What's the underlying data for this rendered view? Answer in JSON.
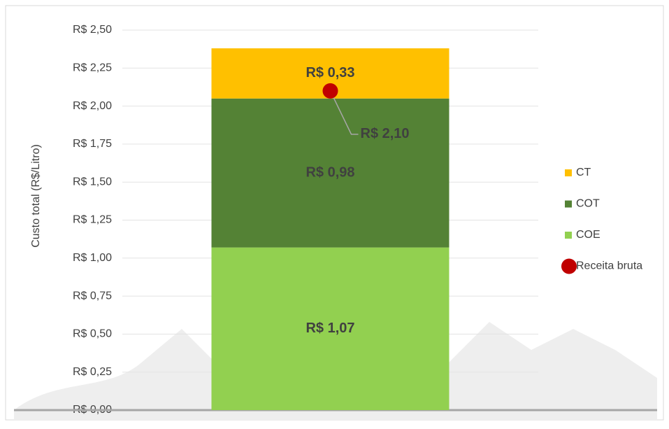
{
  "chart_data": {
    "type": "bar",
    "stacked": true,
    "y_axis_title": "Custo total (R$/Litro)",
    "categories": [
      null
    ],
    "series": [
      {
        "name": "COE",
        "color": "#92d050",
        "values": [
          1.07
        ],
        "value_labels": [
          "R$ 1,07"
        ]
      },
      {
        "name": "COT",
        "color": "#548235",
        "values": [
          0.98
        ],
        "value_labels": [
          "R$ 0,98"
        ]
      },
      {
        "name": "CT",
        "color": "#ffc000",
        "values": [
          0.33
        ],
        "value_labels": [
          "R$ 0,33"
        ]
      },
      {
        "name": "Receita bruta",
        "type": "scatter",
        "color": "#c00000",
        "values": [
          2.1
        ],
        "value_labels": [
          "R$ 2,10"
        ]
      }
    ],
    "ylim": [
      0,
      2.5
    ],
    "yticks": [
      {
        "value": 0,
        "label": "R$ 0,00"
      },
      {
        "value": 0.25,
        "label": "R$ 0,25"
      },
      {
        "value": 0.5,
        "label": "R$ 0,50"
      },
      {
        "value": 0.75,
        "label": "R$ 0,75"
      },
      {
        "value": 1,
        "label": "R$ 1,00"
      },
      {
        "value": 1.25,
        "label": "R$ 1,25"
      },
      {
        "value": 1.5,
        "label": "R$ 1,50"
      },
      {
        "value": 1.75,
        "label": "R$ 1,75"
      },
      {
        "value": 2,
        "label": "R$ 2,00"
      },
      {
        "value": 2.25,
        "label": "R$ 2,25"
      },
      {
        "value": 2.5,
        "label": "R$ 2,50"
      }
    ],
    "grid": true,
    "legend": "right"
  }
}
